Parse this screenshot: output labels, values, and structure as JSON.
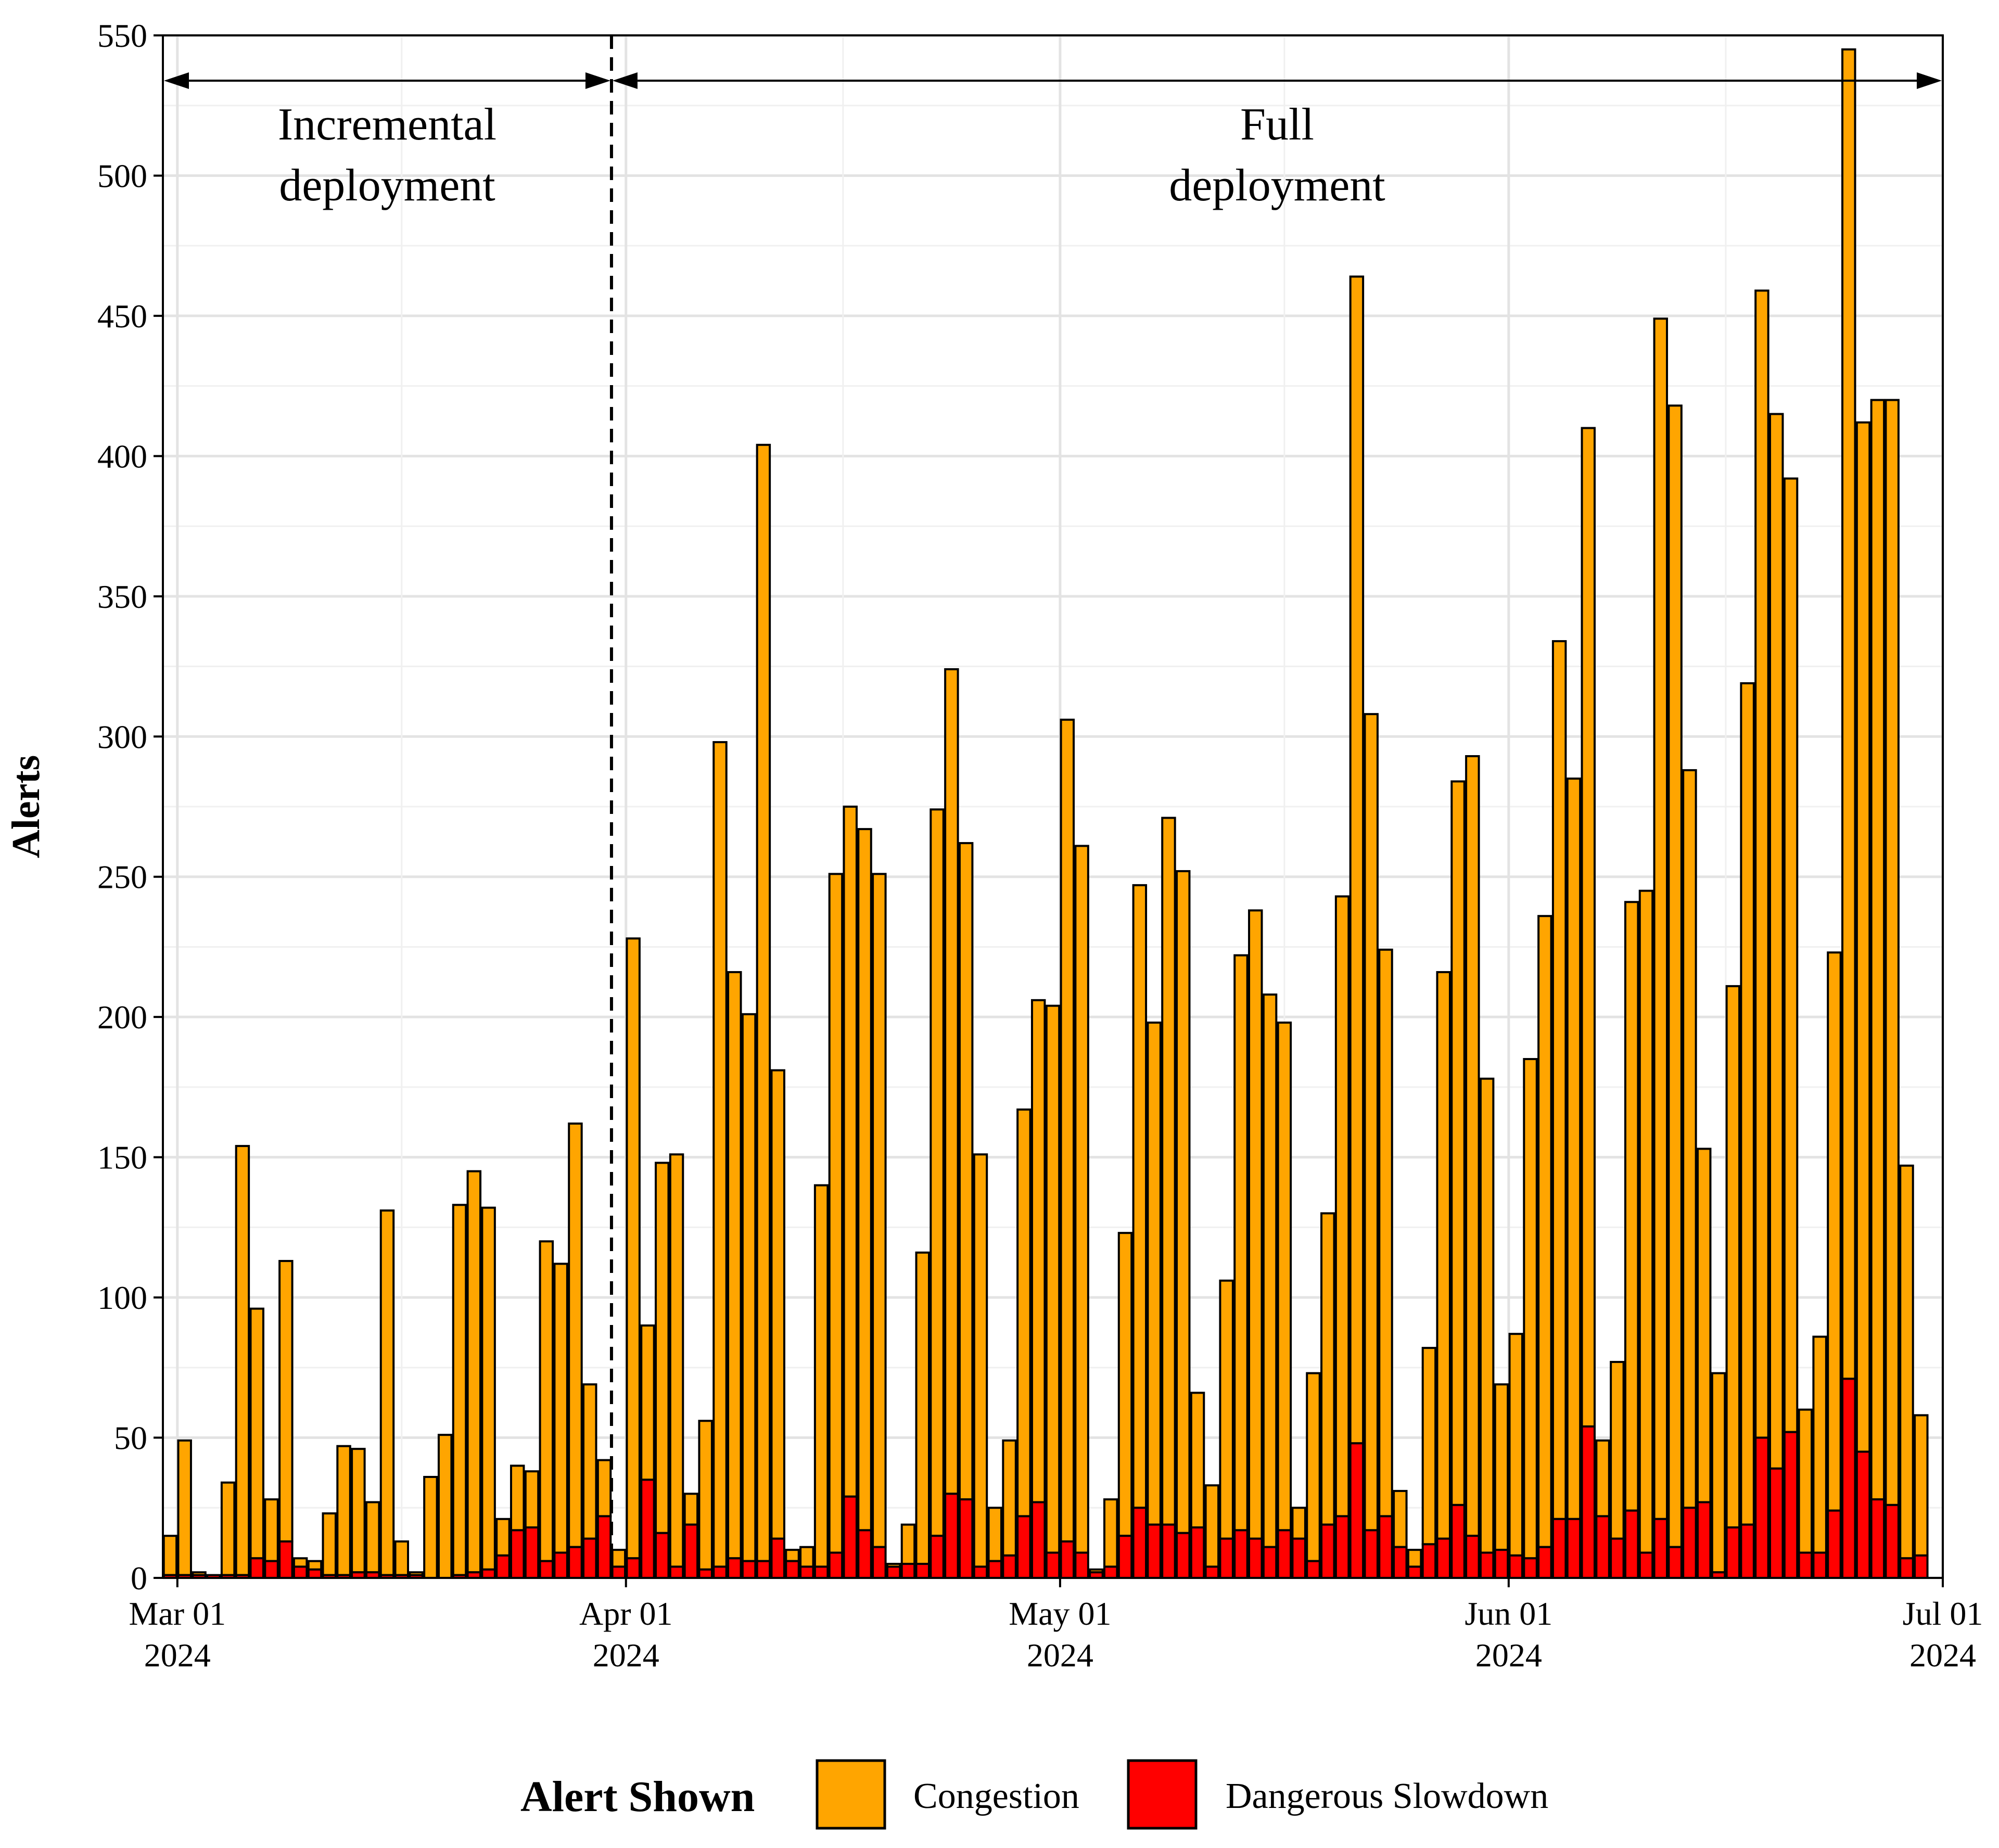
{
  "chart_data": {
    "type": "bar",
    "stacked": true,
    "ylabel": "Alerts",
    "ylim": [
      0,
      550
    ],
    "y_ticks": [
      "0",
      "50",
      "100",
      "150",
      "200",
      "250",
      "300",
      "350",
      "400",
      "450",
      "500",
      "550"
    ],
    "x_start": "2024-02-29",
    "x_end": "2024-07-01",
    "x_ticks": [
      {
        "date": "2024-03-01",
        "line1": "Mar 01",
        "line2": "2024"
      },
      {
        "date": "2024-04-01",
        "line1": "Apr 01",
        "line2": "2024"
      },
      {
        "date": "2024-05-01",
        "line1": "May 01",
        "line2": "2024"
      },
      {
        "date": "2024-06-01",
        "line1": "Jun 01",
        "line2": "2024"
      },
      {
        "date": "2024-07-01",
        "line1": "Jul 01",
        "line2": "2024"
      }
    ],
    "grid": true,
    "legend_position": "bottom",
    "legend_title": "Alert Shown",
    "phase_split_date": "2024-03-31",
    "phases": [
      {
        "line1": "Incremental",
        "line2": "deployment",
        "start": "2024-02-29",
        "end": "2024-03-31"
      },
      {
        "line1": "Full",
        "line2": "deployment",
        "start": "2024-03-31",
        "end": "2024-07-01"
      }
    ],
    "start_date": "2024-02-29",
    "series": [
      {
        "name": "Dangerous Slowdown",
        "color": "#ff0000",
        "values": [
          1,
          1,
          1,
          1,
          1,
          1,
          7,
          6,
          13,
          4,
          3,
          1,
          1,
          2,
          2,
          1,
          1,
          1,
          0,
          0,
          1,
          2,
          3,
          8,
          17,
          18,
          6,
          9,
          11,
          14,
          22,
          4,
          7,
          35,
          16,
          4,
          19,
          3,
          4,
          7,
          6,
          6,
          14,
          6,
          4,
          4,
          9,
          29,
          17,
          11,
          4,
          5,
          5,
          15,
          30,
          28,
          4,
          6,
          8,
          22,
          27,
          9,
          13,
          9,
          2,
          4,
          15,
          25,
          19,
          19,
          16,
          18,
          4,
          14,
          17,
          14,
          11,
          17,
          14,
          6,
          19,
          22,
          48,
          17,
          22,
          11,
          4,
          12,
          14,
          26,
          15,
          9,
          10,
          8,
          7,
          11,
          21,
          21,
          54,
          22,
          14,
          24,
          9,
          21,
          11,
          25,
          27,
          2,
          18,
          19,
          50,
          39,
          52,
          9,
          9,
          24,
          71,
          45,
          28,
          26,
          7,
          8
        ]
      },
      {
        "name": "Congestion",
        "color": "#ffa500",
        "values": [
          14,
          48,
          1,
          0,
          33,
          153,
          89,
          22,
          100,
          3,
          3,
          22,
          46,
          44,
          25,
          130,
          12,
          1,
          36,
          51,
          132,
          143,
          129,
          13,
          23,
          20,
          114,
          103,
          151,
          55,
          20,
          6,
          221,
          55,
          132,
          147,
          11,
          53,
          294,
          209,
          195,
          398,
          167,
          4,
          7,
          136,
          242,
          246,
          250,
          240,
          1,
          14,
          111,
          259,
          294,
          234,
          147,
          19,
          41,
          145,
          179,
          195,
          293,
          252,
          1,
          24,
          108,
          222,
          179,
          252,
          236,
          48,
          29,
          92,
          205,
          224,
          197,
          181,
          11,
          67,
          111,
          221,
          416,
          291,
          202,
          20,
          6,
          70,
          202,
          258,
          278,
          169,
          59,
          79,
          178,
          225,
          313,
          264,
          356,
          27,
          63,
          217,
          236,
          428,
          407,
          263,
          126,
          71,
          193,
          300,
          409,
          376,
          340,
          51,
          77,
          199,
          474,
          367,
          392,
          394,
          140,
          50
        ]
      }
    ]
  }
}
